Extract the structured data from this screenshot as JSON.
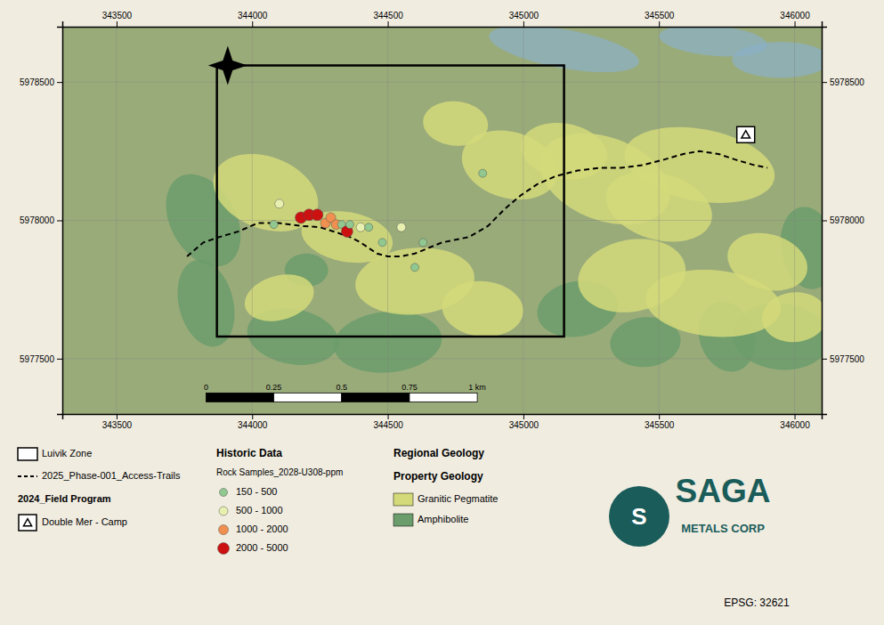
{
  "chart_data": {
    "type": "map",
    "xlim": [
      343300,
      346100
    ],
    "ylim": [
      5977300,
      5978700
    ],
    "xticks": [
      343500,
      344000,
      344500,
      345000,
      345500,
      346000
    ],
    "yticks": [
      5977500,
      5978000,
      5978500
    ],
    "grid": true,
    "background_color": "#f0ece0",
    "map_color": "#9aab7a",
    "water_color": "#8ab0c8",
    "pegmatite_color": "#d4d97a",
    "amphibolite_color": "#6b9c6b",
    "water_patches": [
      {
        "cx": 345150,
        "cy": 5978620,
        "rx": 280,
        "ry": 70,
        "angle": -10
      },
      {
        "cx": 345700,
        "cy": 5978650,
        "rx": 200,
        "ry": 55,
        "angle": -5
      },
      {
        "cx": 345950,
        "cy": 5978580,
        "rx": 180,
        "ry": 65,
        "angle": 0
      }
    ],
    "amphibolite_patches": [
      {
        "cx": 343820,
        "cy": 5978000,
        "rx": 120,
        "ry": 180,
        "angle": 30
      },
      {
        "cx": 343830,
        "cy": 5977700,
        "rx": 100,
        "ry": 160,
        "angle": 15
      },
      {
        "cx": 344150,
        "cy": 5977580,
        "rx": 170,
        "ry": 100,
        "angle": -10
      },
      {
        "cx": 344500,
        "cy": 5977560,
        "rx": 200,
        "ry": 110,
        "angle": 5
      },
      {
        "cx": 344200,
        "cy": 5977820,
        "rx": 80,
        "ry": 60,
        "angle": 0
      },
      {
        "cx": 345200,
        "cy": 5977680,
        "rx": 150,
        "ry": 100,
        "angle": 10
      },
      {
        "cx": 345450,
        "cy": 5977560,
        "rx": 130,
        "ry": 90,
        "angle": 5
      },
      {
        "cx": 345750,
        "cy": 5977580,
        "rx": 100,
        "ry": 130,
        "angle": 20
      },
      {
        "cx": 345950,
        "cy": 5977580,
        "rx": 180,
        "ry": 120,
        "angle": -5
      },
      {
        "cx": 346050,
        "cy": 5977900,
        "rx": 100,
        "ry": 150,
        "angle": 10
      }
    ],
    "pegmatite_patches": [
      {
        "cx": 344050,
        "cy": 5978100,
        "rx": 200,
        "ry": 130,
        "angle": -20
      },
      {
        "cx": 344350,
        "cy": 5977940,
        "rx": 170,
        "ry": 90,
        "angle": -10
      },
      {
        "cx": 344100,
        "cy": 5977720,
        "rx": 130,
        "ry": 80,
        "angle": 15
      },
      {
        "cx": 344600,
        "cy": 5977780,
        "rx": 220,
        "ry": 120,
        "angle": 5
      },
      {
        "cx": 344850,
        "cy": 5977680,
        "rx": 150,
        "ry": 100,
        "angle": -5
      },
      {
        "cx": 344950,
        "cy": 5978200,
        "rx": 180,
        "ry": 120,
        "angle": -15
      },
      {
        "cx": 345150,
        "cy": 5978250,
        "rx": 160,
        "ry": 100,
        "angle": -10
      },
      {
        "cx": 345300,
        "cy": 5978150,
        "rx": 250,
        "ry": 150,
        "angle": -20
      },
      {
        "cx": 345500,
        "cy": 5978050,
        "rx": 200,
        "ry": 120,
        "angle": -15
      },
      {
        "cx": 345650,
        "cy": 5978200,
        "rx": 280,
        "ry": 130,
        "angle": -10
      },
      {
        "cx": 345400,
        "cy": 5977800,
        "rx": 200,
        "ry": 130,
        "angle": 10
      },
      {
        "cx": 345700,
        "cy": 5977700,
        "rx": 250,
        "ry": 120,
        "angle": -5
      },
      {
        "cx": 345900,
        "cy": 5977850,
        "rx": 150,
        "ry": 100,
        "angle": -15
      },
      {
        "cx": 346000,
        "cy": 5977650,
        "rx": 120,
        "ry": 90,
        "angle": 5
      },
      {
        "cx": 344750,
        "cy": 5978350,
        "rx": 120,
        "ry": 80,
        "angle": -5
      }
    ],
    "luivik_zone_box": [
      343870,
      5977580,
      345150,
      5978560
    ],
    "access_trail": {
      "x": [
        343760,
        343820,
        343880,
        343950,
        344020,
        344100,
        344180,
        344250,
        344300,
        344360,
        344400,
        344430,
        344460,
        344500,
        344550,
        344600,
        344650,
        344700,
        344750,
        344800,
        344870,
        344930,
        344990,
        345050,
        345120,
        345200,
        345280,
        345360,
        345440,
        345520,
        345590,
        345650,
        345720,
        345780,
        345850,
        345900
      ],
      "y": [
        5977870,
        5977920,
        5977940,
        5977960,
        5977990,
        5977990,
        5977980,
        5977975,
        5977960,
        5977940,
        5977920,
        5977900,
        5977880,
        5977870,
        5977870,
        5977880,
        5977900,
        5977920,
        5977930,
        5977940,
        5977980,
        5978040,
        5978090,
        5978130,
        5978160,
        5978180,
        5978190,
        5978190,
        5978200,
        5978220,
        5978240,
        5978250,
        5978240,
        5978220,
        5978200,
        5978190
      ]
    },
    "camp_location": [
      345820,
      5978300
    ],
    "rock_samples": {
      "x": [
        344100,
        344080,
        344180,
        344210,
        344240,
        344270,
        344290,
        344310,
        344330,
        344350,
        344360,
        344400,
        344550,
        344430,
        344480,
        344630,
        344600,
        344850
      ],
      "y": [
        5978060,
        5977985,
        5978010,
        5978020,
        5978020,
        5977990,
        5978010,
        5977985,
        5977985,
        5977960,
        5977985,
        5977975,
        5977975,
        5977975,
        5977920,
        5977920,
        5977830,
        5978170
      ],
      "categories": [
        "500-1000",
        "150-500",
        "2000-5000",
        "2000-5000",
        "2000-5000",
        "1000-2000",
        "1000-2000",
        "1000-2000",
        "150-500",
        "2000-5000",
        "150-500",
        "500-1000",
        "500-1000",
        "150-500",
        "150-500",
        "150-500",
        "150-500",
        "150-500"
      ],
      "colors": [
        "#e8f0b0",
        "#90c890",
        "#cc1111",
        "#cc1111",
        "#cc1111",
        "#f09050",
        "#f09050",
        "#f09050",
        "#90c890",
        "#cc1111",
        "#90c890",
        "#e8f0b0",
        "#e8f0b0",
        "#90c890",
        "#90c890",
        "#90c890",
        "#90c890",
        "#90c890"
      ]
    },
    "sample_ranges": [
      {
        "category": "150-500",
        "label": "150 - 500",
        "color": "#90c890"
      },
      {
        "category": "500-1000",
        "label": "500 - 1000",
        "color": "#e8f0b0"
      },
      {
        "category": "1000-2000",
        "label": "1000 - 2000",
        "color": "#f09050"
      },
      {
        "category": "2000-5000",
        "label": "2000 - 5000",
        "color": "#cc1111"
      }
    ],
    "north_arrow": [
      343910,
      5978560
    ],
    "scalebar": {
      "x0": 343830,
      "y": 5977360,
      "length": 1000,
      "labels": [
        "0",
        "0.25",
        "0.5",
        "0.75",
        "1 km"
      ]
    },
    "legend_texts": {
      "luivik_zone": "Luivik Zone",
      "access_trails": "2025_Phase-001_Access-Trails",
      "field_program": "2024_Field Program",
      "double_mer_camp": "Double Mer - Camp",
      "historic_data": "Historic Data",
      "rock_samples_label": "Rock Samples_2028-U308-ppm",
      "regional_geology": "Regional Geology",
      "property_geology": "Property Geology",
      "granitic_pegmatite": "Granitic Pegmatite",
      "amphibolite": "Amphibolite",
      "epsg": "EPSG: 32621"
    },
    "logo": {
      "color": "#1a5c5a",
      "symbol": "S",
      "name": "SAGA",
      "subtitle": "METALS CORP"
    }
  }
}
